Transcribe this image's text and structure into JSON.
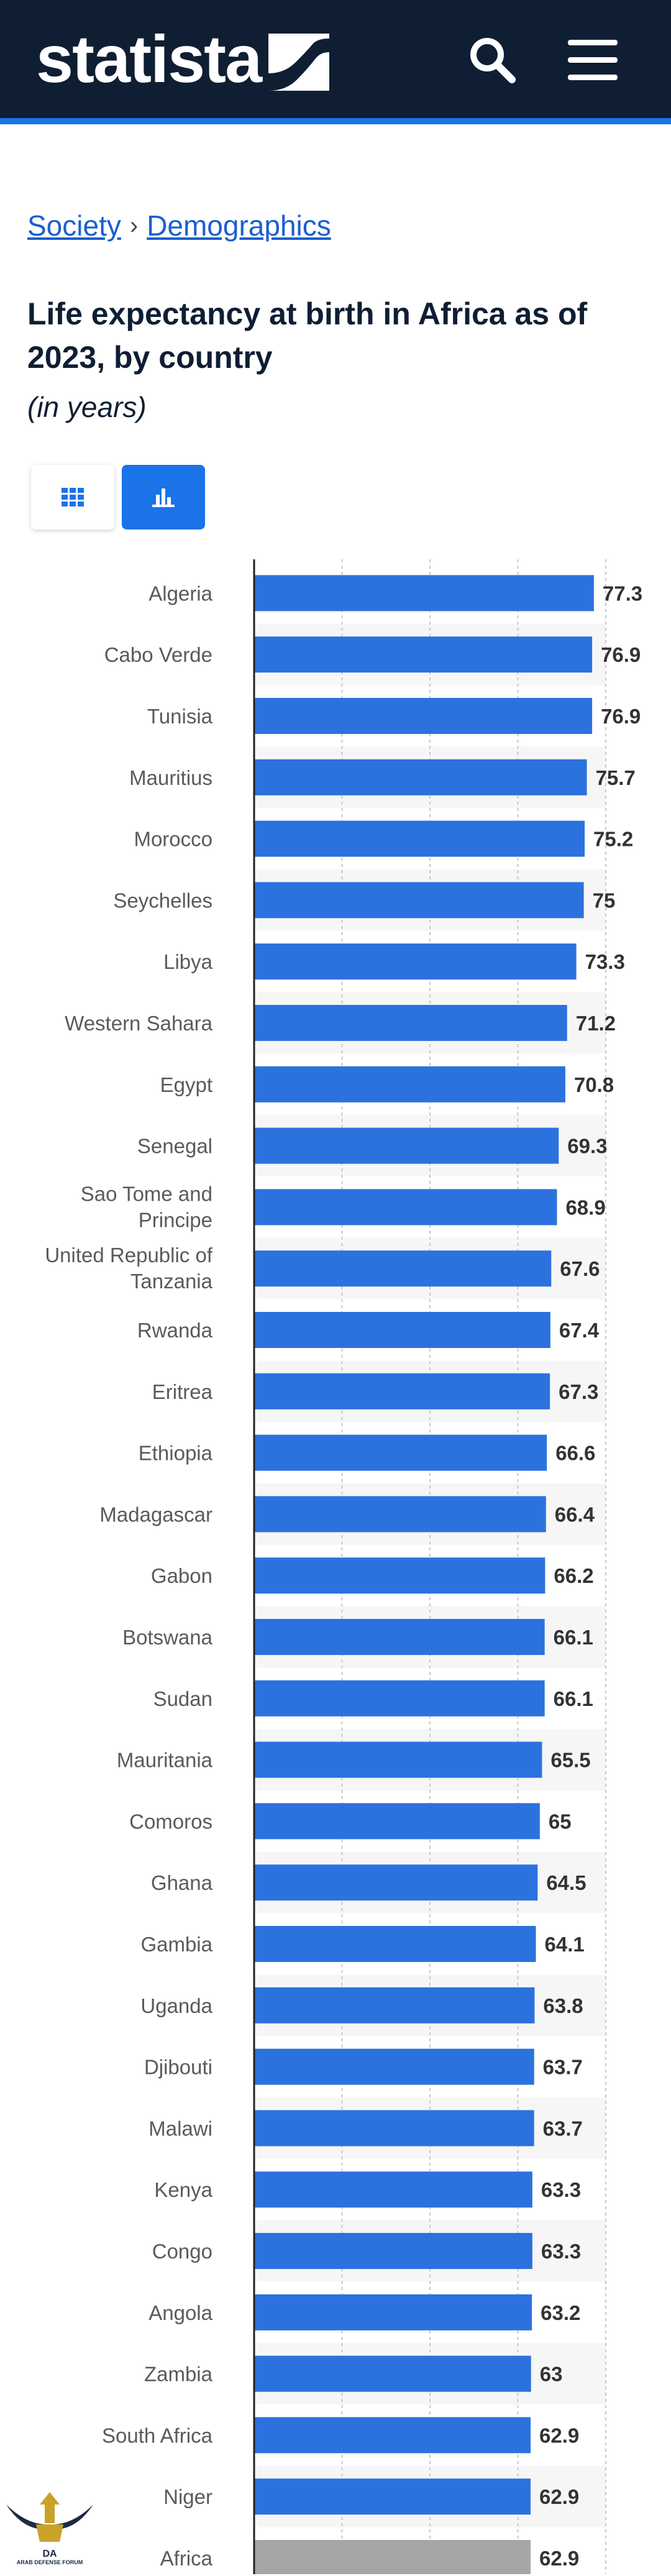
{
  "header": {
    "brand": "statista",
    "search_icon": "search-icon",
    "menu_icon": "hamburger-menu-icon",
    "background_color": "#0f1e33",
    "accent_color": "#1a73e8"
  },
  "breadcrumb": {
    "items": [
      "Society",
      "Demographics"
    ],
    "separator": "›"
  },
  "title": "Life expectancy at birth in Africa as of 2023, by country",
  "subtitle": "(in years)",
  "view_toggle": {
    "table_icon": "grid-icon",
    "chart_icon": "bar-chart-icon",
    "active": "chart"
  },
  "chart_data": {
    "type": "bar",
    "orientation": "horizontal",
    "title": "Life expectancy at birth in Africa as of 2023, by country",
    "unit": "years",
    "xlim": [
      0,
      80
    ],
    "grid": true,
    "bar_color": "#2b72de",
    "highlight_color": "#a6a6a6",
    "categories": [
      "Algeria",
      "Cabo Verde",
      "Tunisia",
      "Mauritius",
      "Morocco",
      "Seychelles",
      "Libya",
      "Western Sahara",
      "Egypt",
      "Senegal",
      "Sao Tome and Principe",
      "United Republic of Tanzania",
      "Rwanda",
      "Eritrea",
      "Ethiopia",
      "Madagascar",
      "Gabon",
      "Botswana",
      "Sudan",
      "Mauritania",
      "Comoros",
      "Ghana",
      "Gambia",
      "Uganda",
      "Djibouti",
      "Malawi",
      "Kenya",
      "Congo",
      "Angola",
      "Zambia",
      "South Africa",
      "Niger",
      "Africa"
    ],
    "values": [
      77.3,
      76.9,
      76.9,
      75.7,
      75.2,
      75,
      73.3,
      71.2,
      70.8,
      69.3,
      68.9,
      67.6,
      67.4,
      67.3,
      66.6,
      66.4,
      66.2,
      66.1,
      66.1,
      65.5,
      65,
      64.5,
      64.1,
      63.8,
      63.7,
      63.7,
      63.3,
      63.3,
      63.2,
      63,
      62.9,
      62.9,
      62.9
    ],
    "value_labels": [
      "77.3",
      "76.9",
      "76.9",
      "75.7",
      "75.2",
      "75",
      "73.3",
      "71.2",
      "70.8",
      "69.3",
      "68.9",
      "67.6",
      "67.4",
      "67.3",
      "66.6",
      "66.4",
      "66.2",
      "66.1",
      "66.1",
      "65.5",
      "65",
      "64.5",
      "64.1",
      "63.8",
      "63.7",
      "63.7",
      "63.3",
      "63.3",
      "63.2",
      "63",
      "62.9",
      "62.9",
      "62.9"
    ],
    "highlighted": [
      "Africa"
    ]
  },
  "watermark_logo": {
    "icon": "eagle-emblem-icon",
    "text": "ARAB DEFENSE FORUM"
  }
}
